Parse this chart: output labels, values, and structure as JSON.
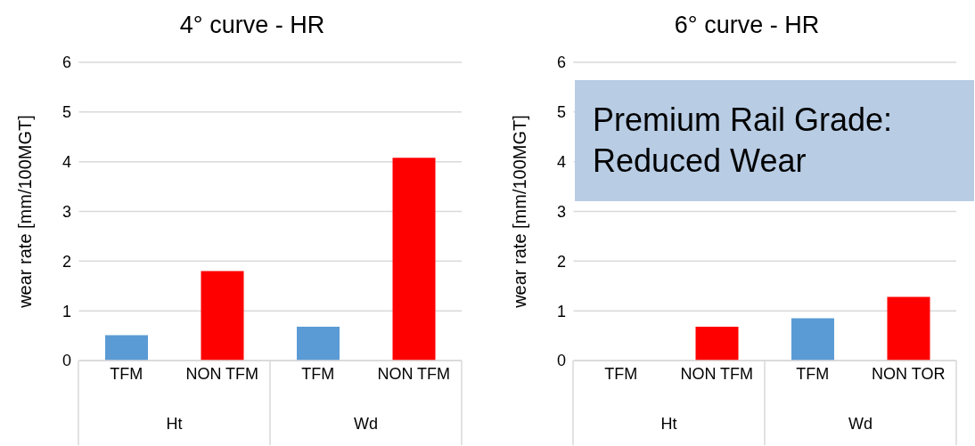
{
  "chart_data": [
    {
      "type": "bar",
      "title": "4° curve - HR",
      "ylabel": "wear rate [mm/100MGT]",
      "categories": [
        "TFM",
        "NON TFM",
        "TFM",
        "NON TFM"
      ],
      "values": [
        0.51,
        1.8,
        0.68,
        4.08
      ],
      "colors": [
        "#5b9bd5",
        "#ff0000",
        "#5b9bd5",
        "#ff0000"
      ],
      "ylim": [
        0,
        6
      ],
      "yticks": [
        0,
        1,
        2,
        3,
        4,
        5,
        6
      ],
      "grid": "y",
      "annotations": [
        "Ht",
        "Wd"
      ]
    },
    {
      "type": "bar",
      "title": "6° curve - HR",
      "ylabel": "wear rate [mm/100MGT]",
      "categories": [
        "TFM",
        "NON TFM",
        "TFM",
        "NON TOR"
      ],
      "values": [
        null,
        0.68,
        0.85,
        1.28
      ],
      "colors": [
        "#5b9bd5",
        "#ff0000",
        "#5b9bd5",
        "#ff0000"
      ],
      "ylim": [
        0,
        6
      ],
      "yticks": [
        0,
        1,
        2,
        3,
        4,
        5,
        6
      ],
      "grid": "y",
      "annotations": [
        "Ht",
        "Wd",
        "Premium Rail Grade: Reduced Wear"
      ]
    }
  ]
}
